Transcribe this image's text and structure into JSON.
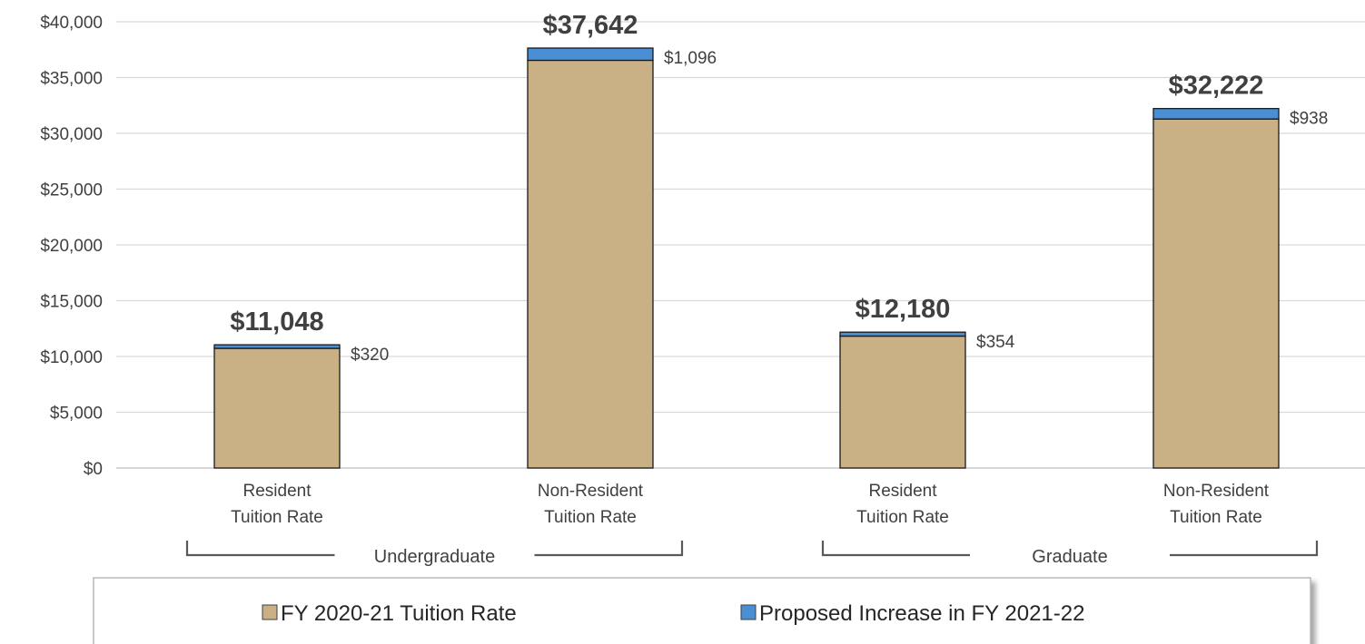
{
  "chart_data": {
    "type": "bar",
    "stacked": true,
    "categories": [
      "Resident Tuition Rate",
      "Non-Resident Tuition Rate",
      "Resident Tuition Rate",
      "Non-Resident Tuition Rate"
    ],
    "category_lines": [
      [
        "Resident",
        "Tuition Rate"
      ],
      [
        "Non-Resident",
        "Tuition Rate"
      ],
      [
        "Resident",
        "Tuition Rate"
      ],
      [
        "Non-Resident",
        "Tuition Rate"
      ]
    ],
    "groups": [
      {
        "label": "Undergraduate",
        "categories": [
          0,
          1
        ]
      },
      {
        "label": "Graduate",
        "categories": [
          2,
          3
        ]
      }
    ],
    "series": [
      {
        "name": "FY 2020-21 Tuition Rate",
        "values": [
          10728,
          36546,
          11826,
          31284
        ],
        "color": "#c9b185"
      },
      {
        "name": "Proposed Increase in FY 2021-22",
        "values": [
          320,
          1096,
          354,
          938
        ],
        "color": "#4a8fd4"
      }
    ],
    "totals": [
      11048,
      37642,
      12180,
      32222
    ],
    "total_labels": [
      "$11,048",
      "$37,642",
      "$12,180",
      "$32,222"
    ],
    "increase_labels": [
      "$320",
      "$1,096",
      "$354",
      "$938"
    ],
    "y_ticks": [
      0,
      5000,
      10000,
      15000,
      20000,
      25000,
      30000,
      35000,
      40000
    ],
    "y_tick_labels": [
      "$0",
      "$5,000",
      "$10,000",
      "$15,000",
      "$20,000",
      "$25,000",
      "$30,000",
      "$35,000",
      "$40,000"
    ],
    "ylim": [
      0,
      40000
    ],
    "grid": true,
    "legend_position": "bottom",
    "title": "",
    "xlabel": "",
    "ylabel": ""
  }
}
